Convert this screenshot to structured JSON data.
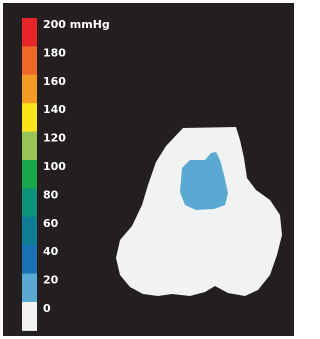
{
  "legend": {
    "items": [
      {
        "label": "200 mmHg",
        "color": "#e8262a"
      },
      {
        "label": "180",
        "color": "#ef6a2a"
      },
      {
        "label": "160",
        "color": "#f59b24"
      },
      {
        "label": "140",
        "color": "#fbe41a"
      },
      {
        "label": "120",
        "color": "#98c455"
      },
      {
        "label": "100",
        "color": "#17a84b"
      },
      {
        "label": "80",
        "color": "#0a9479"
      },
      {
        "label": "60",
        "color": "#0e7d95"
      },
      {
        "label": "40",
        "color": "#1a72b4"
      },
      {
        "label": "20",
        "color": "#5aa9d2"
      },
      {
        "label": "0",
        "color": "#f1f2f2"
      }
    ]
  }
}
